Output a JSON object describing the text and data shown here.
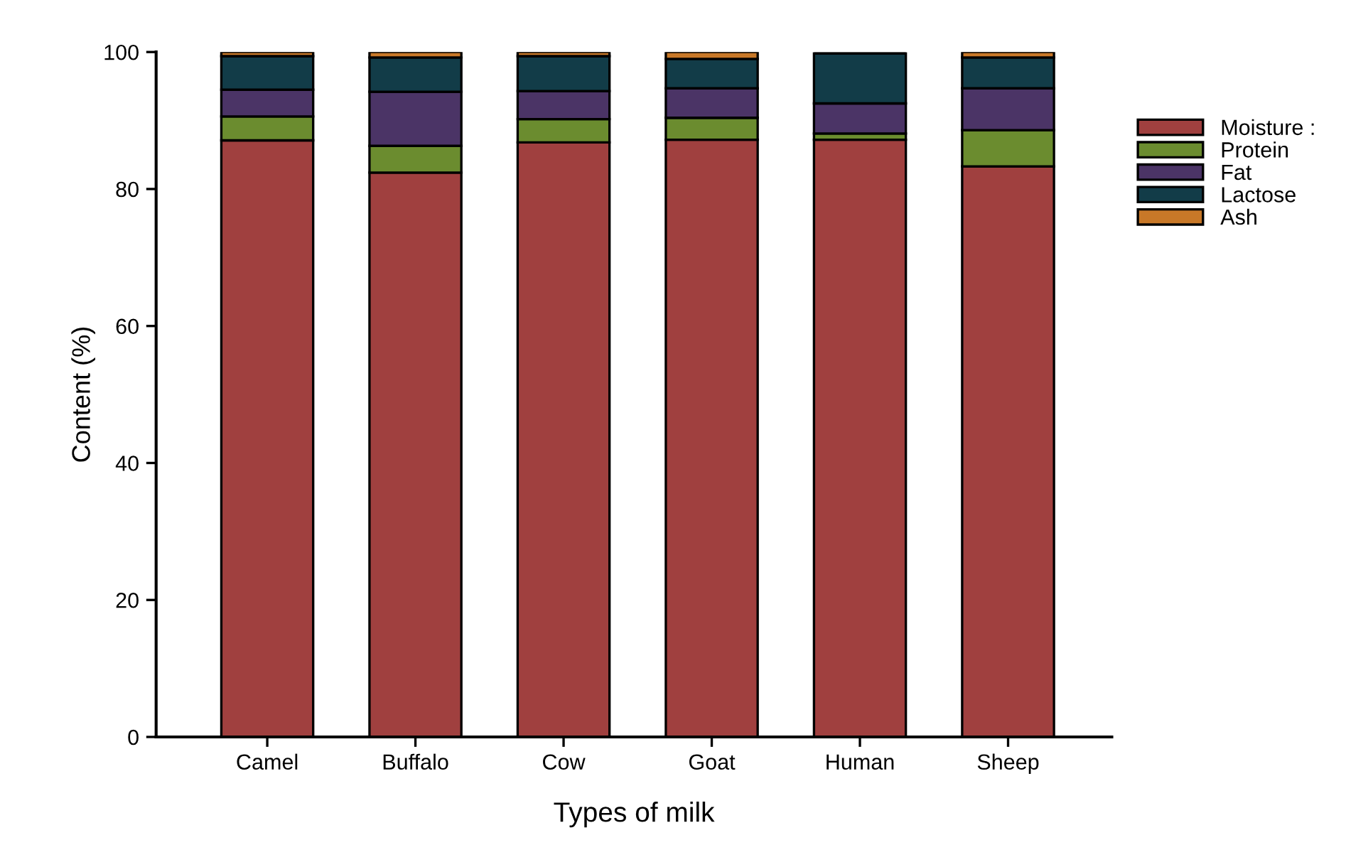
{
  "chart_data": {
    "type": "bar",
    "stacked": true,
    "xlabel": "Types of milk",
    "ylabel": "Content (%)",
    "categories": [
      "Camel",
      "Buffalo",
      "Cow",
      "Goat",
      "Human",
      "Sheep"
    ],
    "series": [
      {
        "name": "Moisture :",
        "color": "#a0403f",
        "values": [
          87.1,
          82.4,
          86.8,
          87.2,
          87.2,
          83.3
        ]
      },
      {
        "name": "Protein",
        "color": "#6b8c2f",
        "values": [
          3.5,
          3.9,
          3.4,
          3.2,
          0.9,
          5.3
        ]
      },
      {
        "name": "Fat",
        "color": "#4b3466",
        "values": [
          3.9,
          7.9,
          4.1,
          4.3,
          4.4,
          6.1
        ]
      },
      {
        "name": "Lactose",
        "color": "#123c48",
        "values": [
          4.9,
          5.0,
          5.1,
          4.3,
          7.3,
          4.5
        ]
      },
      {
        "name": "Ash",
        "color": "#c87828",
        "values": [
          0.6,
          0.8,
          0.6,
          1.0,
          null,
          0.8
        ]
      }
    ],
    "ylim": [
      0,
      100
    ],
    "yticks": [
      0,
      20,
      40,
      60,
      80,
      100
    ],
    "grid": false,
    "legend": "top right"
  }
}
